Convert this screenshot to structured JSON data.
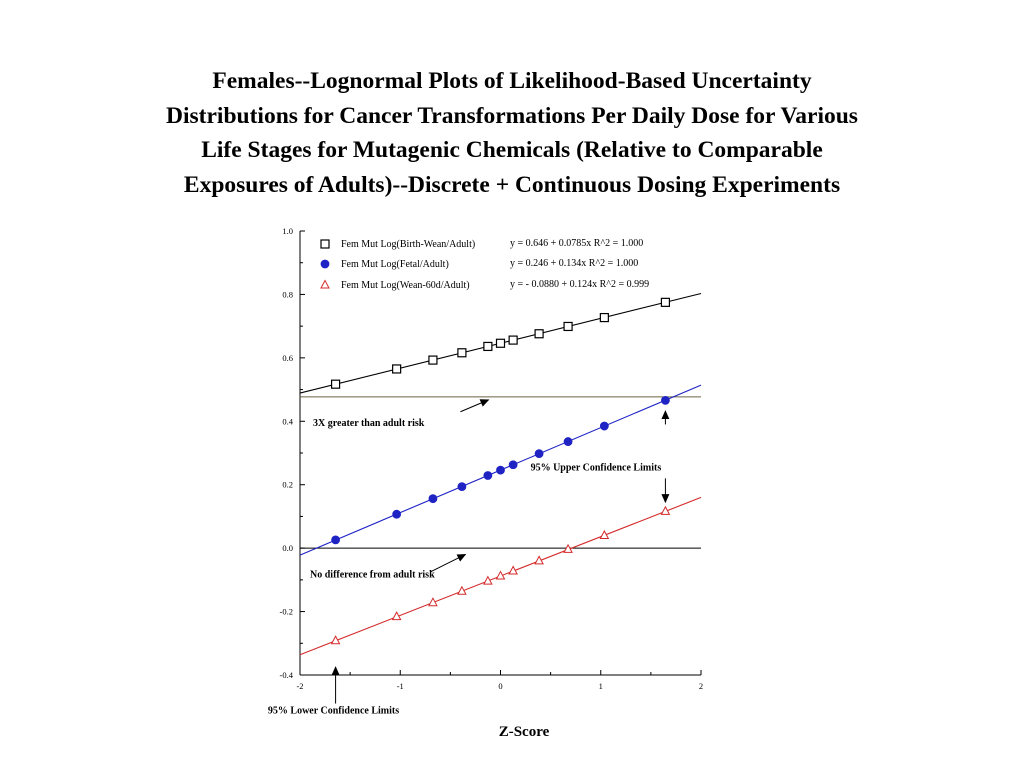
{
  "title_lines": [
    "Females--Lognormal Plots of Likelihood-Based Uncertainty",
    "Distributions for Cancer Transformations Per Daily Dose for Various",
    "Life Stages for Mutagenic Chemicals (Relative to Comparable",
    "Exposures of Adults)--Discrete + Continuous Dosing Experiments"
  ],
  "chart_data": {
    "type": "scatter",
    "xlabel": "Z-Score",
    "ylabel": "",
    "xlim": [
      -2,
      2
    ],
    "ylim": [
      -0.4,
      1.0
    ],
    "x_ticks": [
      "-2",
      "-1",
      "0",
      "1",
      "2"
    ],
    "y_ticks": [
      "-0.4",
      "-0.2",
      "0.0",
      "0.2",
      "0.4",
      "0.6",
      "0.8",
      "1.0"
    ],
    "x_minor_ticks": [
      -1.5,
      -0.5,
      0.5,
      1.5
    ],
    "y_minor_ticks": [
      -0.3,
      -0.1,
      0.1,
      0.3,
      0.5,
      0.7,
      0.9
    ],
    "grid": false,
    "legend_position": "top-left",
    "series": [
      {
        "name": "Fem Mut Log(Birth-Wean/Adult)",
        "marker": "square-open",
        "color": "#000000",
        "equation": "y = 0.646 + 0.0785x   R^2 = 1.000",
        "fit": {
          "intercept": 0.646,
          "slope": 0.0785
        },
        "x": [
          -1.645,
          -1.036,
          -0.674,
          -0.385,
          -0.126,
          0.0,
          0.126,
          0.385,
          0.674,
          1.036,
          1.645
        ],
        "y": [
          0.517,
          0.565,
          0.593,
          0.616,
          0.636,
          0.646,
          0.656,
          0.676,
          0.699,
          0.727,
          0.775
        ]
      },
      {
        "name": "Fem Mut Log(Fetal/Adult)",
        "marker": "circle-filled",
        "color": "#1f23c4",
        "equation": "y = 0.246 + 0.134x   R^2 = 1.000",
        "fit": {
          "intercept": 0.246,
          "slope": 0.134
        },
        "x": [
          -1.645,
          -1.036,
          -0.674,
          -0.385,
          -0.126,
          0.0,
          0.126,
          0.385,
          0.674,
          1.036,
          1.645
        ],
        "y": [
          0.026,
          0.107,
          0.156,
          0.194,
          0.229,
          0.246,
          0.263,
          0.298,
          0.336,
          0.385,
          0.466
        ]
      },
      {
        "name": "Fem Mut Log(Wean-60d/Adult)",
        "marker": "triangle-open",
        "color": "#d42a2a",
        "equation": "y =  - 0.0880 + 0.124x   R^2 = 0.999",
        "fit": {
          "intercept": -0.088,
          "slope": 0.124
        },
        "x": [
          -1.645,
          -1.036,
          -0.674,
          -0.385,
          -0.126,
          0.0,
          0.126,
          0.385,
          0.674,
          1.036,
          1.645
        ],
        "y": [
          -0.292,
          -0.216,
          -0.172,
          -0.136,
          -0.104,
          -0.088,
          -0.072,
          -0.04,
          -0.004,
          0.04,
          0.116
        ]
      }
    ],
    "reference_lines": [
      {
        "y": 0.477,
        "color": "#6b6440",
        "label": "3X greater than adult risk"
      },
      {
        "y": 0.0,
        "color": "#000000",
        "label": "No difference from adult risk"
      }
    ],
    "annotations": [
      {
        "text": "3X greater than adult risk",
        "x": -1.87,
        "y": 0.385,
        "arrow_from": [
          -0.4,
          0.43
        ],
        "arrow_to": [
          -0.12,
          0.477
        ]
      },
      {
        "text": "No difference from adult risk",
        "x": -1.9,
        "y": -0.092,
        "arrow_from": [
          -0.7,
          -0.075
        ],
        "arrow_to": [
          -0.35,
          -0.02
        ]
      },
      {
        "text": "95%  Upper Confidence Limits",
        "x": 0.3,
        "y": 0.245,
        "arrow_up_from": [
          1.645,
          0.39
        ],
        "arrow_up_to": [
          1.645,
          0.432
        ],
        "arrow_down_from": [
          1.645,
          0.22
        ],
        "arrow_down_to": [
          1.645,
          0.145
        ]
      },
      {
        "text": "95%  Lower Confidence Limits",
        "x": -2.32,
        "y": -0.522,
        "arrow_from": [
          -1.645,
          -0.49
        ],
        "arrow_to": [
          -1.645,
          -0.375
        ]
      }
    ]
  }
}
